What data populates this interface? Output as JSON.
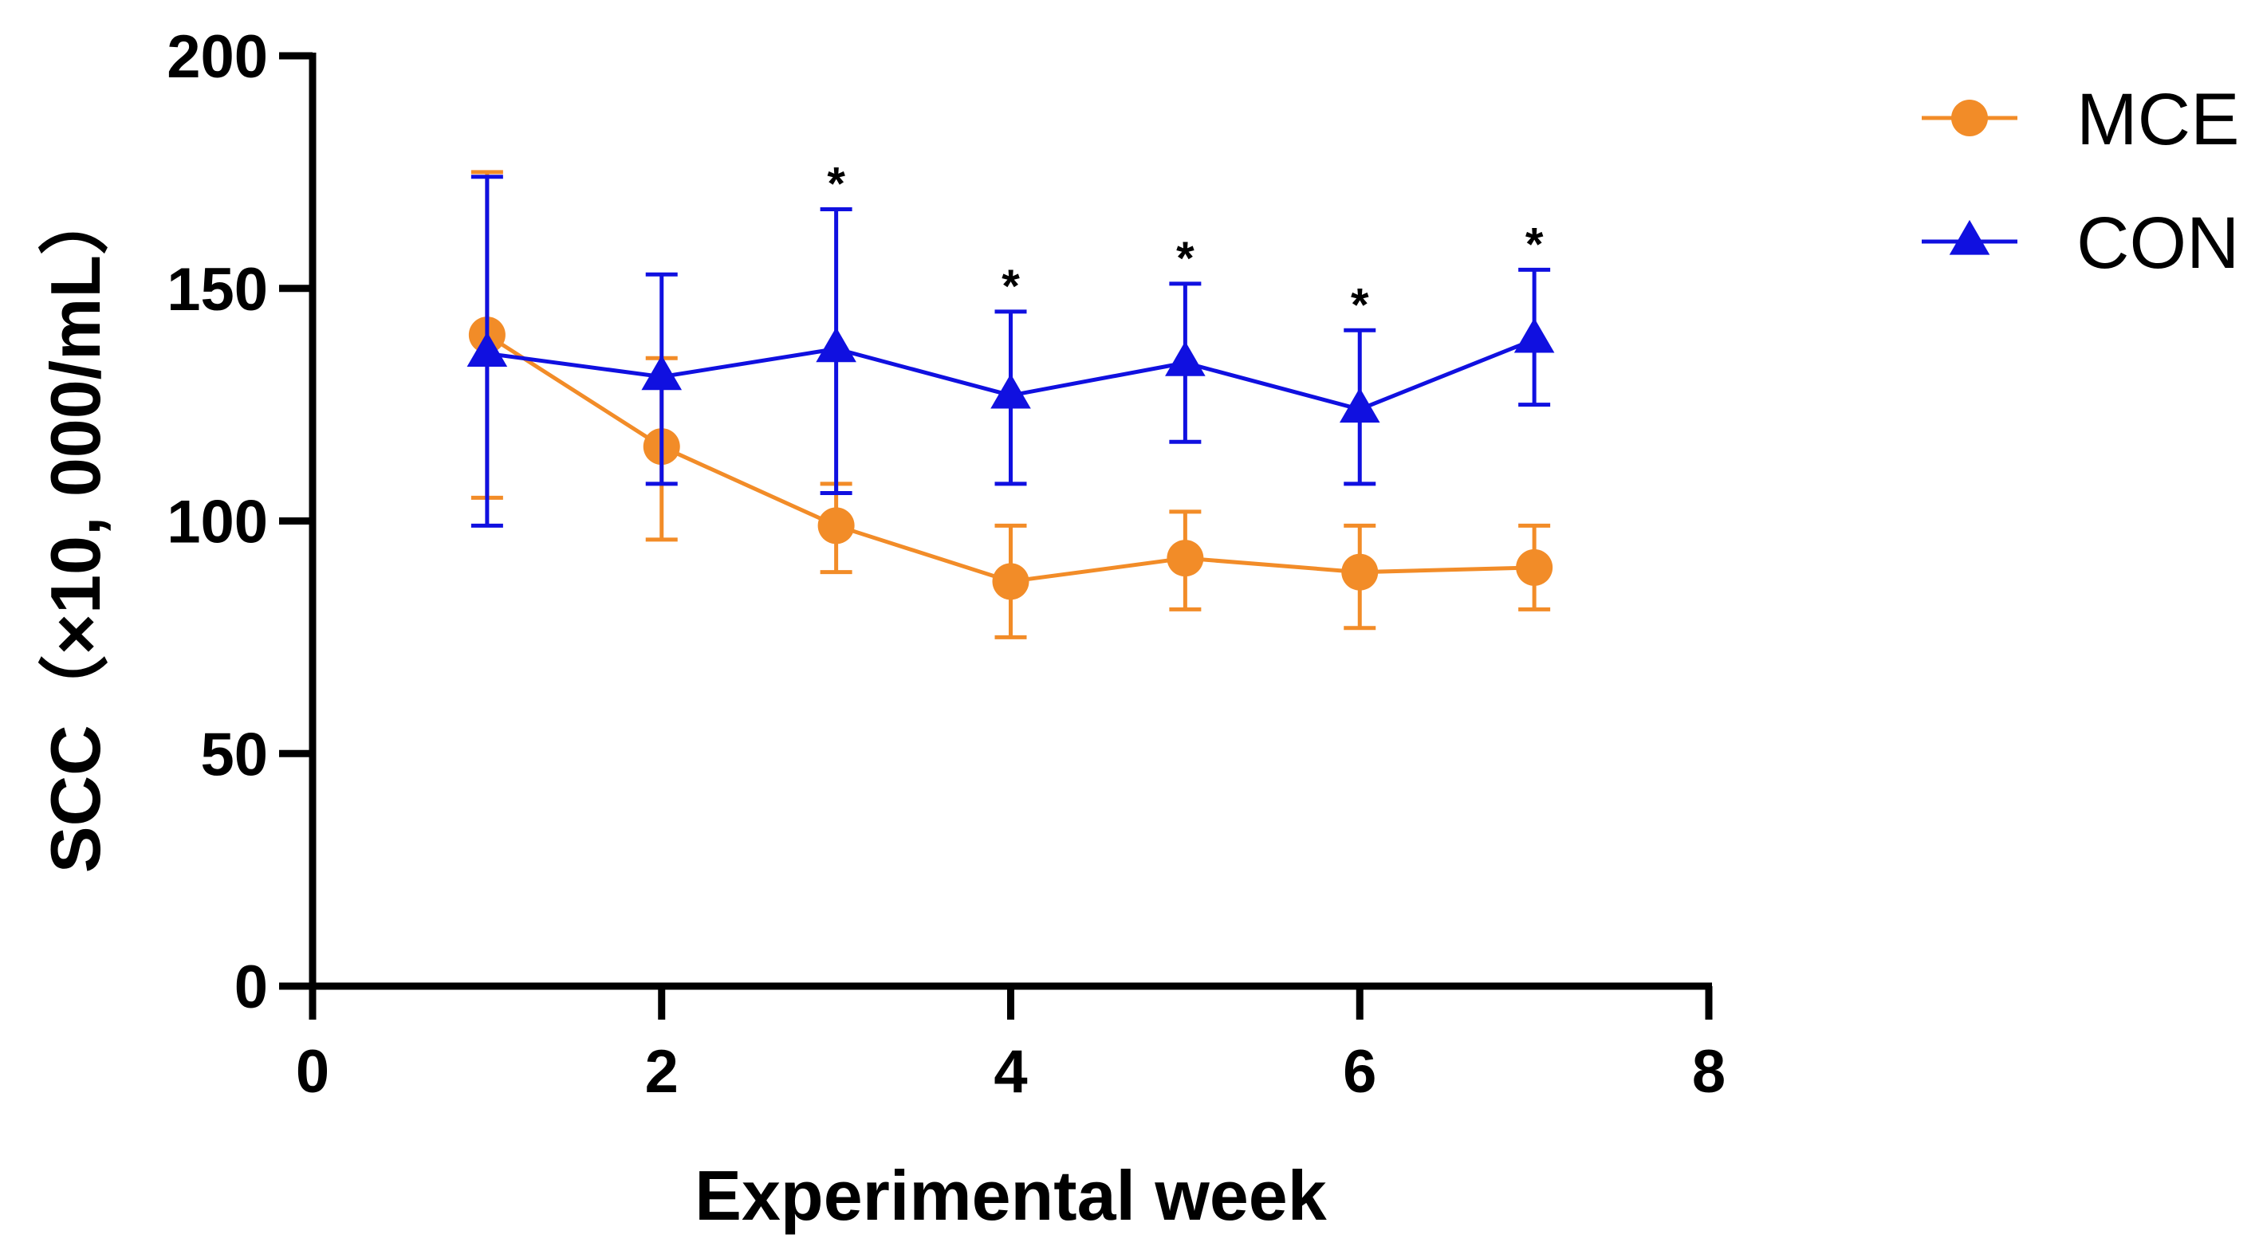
{
  "chart_data": {
    "type": "line",
    "xlabel": "Experimental week",
    "ylabel": "SCC（×10, 000/mL）",
    "xlim": [
      0,
      8
    ],
    "ylim": [
      0,
      200
    ],
    "x_ticks": [
      "0",
      "2",
      "4",
      "6",
      "8"
    ],
    "y_ticks": [
      "0",
      "50",
      "100",
      "150",
      "200"
    ],
    "grid": false,
    "legend_position": "top-right",
    "x": [
      1,
      2,
      3,
      4,
      5,
      6,
      7
    ],
    "series": [
      {
        "name": "MCE",
        "color": "#F28C28",
        "marker": "circle",
        "values": [
          140,
          116,
          99,
          87,
          92,
          89,
          90
        ],
        "err_upper": [
          175,
          135,
          108,
          99,
          102,
          99,
          99
        ],
        "err_lower": [
          105,
          96,
          89,
          75,
          81,
          77,
          81
        ]
      },
      {
        "name": "CON",
        "color": "#1010E0",
        "marker": "triangle",
        "values": [
          136,
          131,
          137,
          127,
          134,
          124,
          139
        ],
        "err_upper": [
          174,
          153,
          167,
          145,
          151,
          141,
          154
        ],
        "err_lower": [
          99,
          108,
          106,
          108,
          117,
          108,
          125
        ]
      }
    ],
    "annotations": [
      {
        "x": 3,
        "y": 167,
        "text": "*"
      },
      {
        "x": 4,
        "y": 145,
        "text": "*"
      },
      {
        "x": 5,
        "y": 151,
        "text": "*"
      },
      {
        "x": 6,
        "y": 141,
        "text": "*"
      },
      {
        "x": 7,
        "y": 154,
        "text": "*"
      }
    ]
  }
}
